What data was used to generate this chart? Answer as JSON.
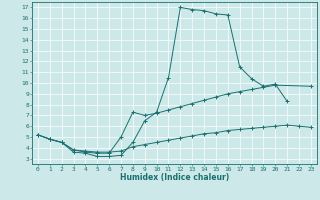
{
  "title": "",
  "xlabel": "Humidex (Indice chaleur)",
  "background_color": "#cce8e8",
  "grid_color": "#aacccc",
  "line_color": "#1a7070",
  "xlim": [
    -0.5,
    23.5
  ],
  "ylim": [
    2.5,
    17.5
  ],
  "xticks": [
    0,
    1,
    2,
    3,
    4,
    5,
    6,
    7,
    8,
    9,
    10,
    11,
    12,
    13,
    14,
    15,
    16,
    17,
    18,
    19,
    20,
    21,
    22,
    23
  ],
  "yticks": [
    3,
    4,
    5,
    6,
    7,
    8,
    9,
    10,
    11,
    12,
    13,
    14,
    15,
    16,
    17
  ],
  "line1_x": [
    0,
    1,
    2,
    3,
    4,
    5,
    6,
    7,
    8,
    9,
    10,
    11,
    12,
    13,
    14,
    15,
    16,
    17,
    18,
    19,
    20,
    21
  ],
  "line1_y": [
    5.2,
    4.8,
    4.5,
    3.6,
    3.5,
    3.2,
    3.2,
    3.3,
    4.5,
    6.5,
    7.3,
    10.5,
    17.0,
    16.8,
    16.7,
    16.4,
    16.3,
    11.5,
    10.4,
    9.7,
    9.9,
    8.3
  ],
  "line2_x": [
    0,
    1,
    2,
    3,
    4,
    5,
    6,
    7,
    8,
    9,
    10,
    11,
    12,
    13,
    14,
    15,
    16,
    17,
    18,
    19,
    20,
    23
  ],
  "line2_y": [
    5.2,
    4.8,
    4.5,
    3.8,
    3.6,
    3.5,
    3.5,
    5.0,
    7.3,
    7.0,
    7.2,
    7.5,
    7.8,
    8.1,
    8.4,
    8.7,
    9.0,
    9.2,
    9.4,
    9.6,
    9.8,
    9.7
  ],
  "line3_x": [
    0,
    1,
    2,
    3,
    4,
    5,
    6,
    7,
    8,
    9,
    10,
    11,
    12,
    13,
    14,
    15,
    16,
    17,
    18,
    19,
    20,
    21,
    22,
    23
  ],
  "line3_y": [
    5.2,
    4.8,
    4.5,
    3.8,
    3.7,
    3.6,
    3.6,
    3.7,
    4.1,
    4.3,
    4.5,
    4.7,
    4.9,
    5.1,
    5.3,
    5.4,
    5.6,
    5.7,
    5.8,
    5.9,
    6.0,
    6.1,
    6.0,
    5.9
  ]
}
